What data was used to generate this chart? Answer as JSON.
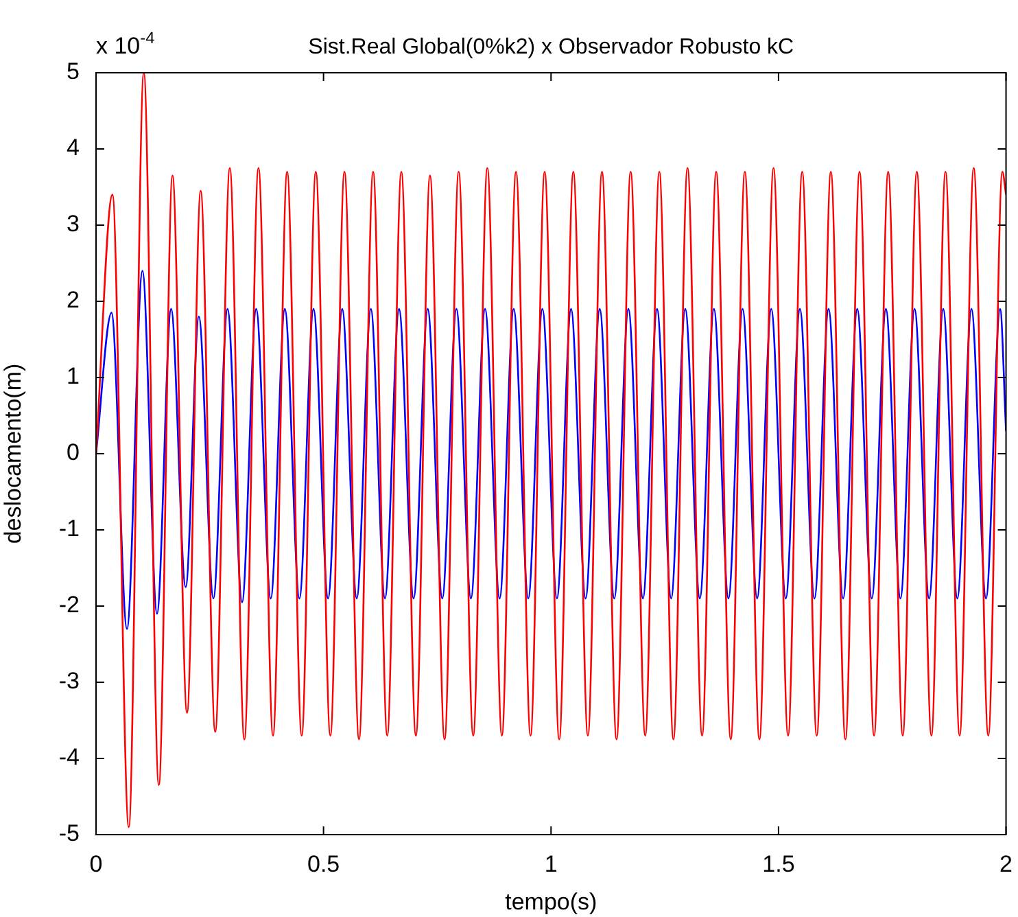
{
  "chart_data": {
    "type": "line",
    "title": "Sist.Real Global(0%k2) x Observador Robusto kC",
    "xlabel": "tempo(s)",
    "ylabel": "deslocamento(m)",
    "annotations": [
      "x 10$^{-4}$"
    ],
    "xlim": [
      0,
      2
    ],
    "xticks": [
      0,
      0.5,
      1,
      1.5,
      2
    ],
    "ylim": [
      -5,
      5
    ],
    "yticks": [
      -5,
      -4,
      -3,
      -2,
      -1,
      0,
      1,
      2,
      3,
      4,
      5
    ],
    "marker": "none",
    "line_style": "solid",
    "legend": false,
    "series": [
      {
        "color": "#ff0000",
        "x": [
          0,
          0.036,
          0.072,
          0.105,
          0.138,
          0.168,
          0.2,
          0.23,
          0.262,
          0.294,
          0.326,
          0.357,
          0.389,
          0.42,
          0.452,
          0.483,
          0.515,
          0.546,
          0.578,
          0.609,
          0.64,
          0.671,
          0.703,
          0.734,
          0.766,
          0.797,
          0.829,
          0.86,
          0.892,
          0.923,
          0.955,
          0.986,
          1.018,
          1.049,
          1.081,
          1.112,
          1.144,
          1.175,
          1.207,
          1.238,
          1.269,
          1.3,
          1.332,
          1.363,
          1.395,
          1.426,
          1.458,
          1.489,
          1.521,
          1.552,
          1.584,
          1.615,
          1.647,
          1.678,
          1.71,
          1.741,
          1.773,
          1.804,
          1.836,
          1.867,
          1.898,
          1.929,
          1.961,
          1.992,
          2.0
        ],
        "values": [
          0,
          3.4,
          -4.9,
          5.0,
          -4.35,
          3.65,
          -3.4,
          3.45,
          -3.65,
          3.75,
          -3.75,
          3.75,
          -3.7,
          3.7,
          -3.7,
          3.7,
          -3.7,
          3.7,
          -3.75,
          3.7,
          -3.7,
          3.7,
          -3.7,
          3.65,
          -3.75,
          3.7,
          -3.7,
          3.75,
          -3.7,
          3.7,
          -3.7,
          3.7,
          -3.75,
          3.7,
          -3.7,
          3.7,
          -3.75,
          3.7,
          -3.7,
          3.7,
          -3.75,
          3.75,
          -3.7,
          3.7,
          -3.75,
          3.7,
          -3.75,
          3.75,
          -3.7,
          3.7,
          -3.7,
          3.7,
          -3.75,
          3.7,
          -3.7,
          3.7,
          -3.7,
          3.7,
          -3.7,
          3.7,
          -3.7,
          3.75,
          -3.7,
          3.7,
          3.4
        ]
      },
      {
        "color": "#0000ff",
        "x": [
          0,
          0.034,
          0.068,
          0.102,
          0.134,
          0.165,
          0.197,
          0.226,
          0.258,
          0.289,
          0.321,
          0.352,
          0.384,
          0.415,
          0.447,
          0.478,
          0.51,
          0.541,
          0.573,
          0.604,
          0.635,
          0.666,
          0.698,
          0.729,
          0.761,
          0.792,
          0.824,
          0.855,
          0.887,
          0.918,
          0.95,
          0.981,
          1.013,
          1.044,
          1.076,
          1.107,
          1.139,
          1.17,
          1.202,
          1.233,
          1.264,
          1.295,
          1.327,
          1.358,
          1.39,
          1.421,
          1.453,
          1.484,
          1.516,
          1.547,
          1.579,
          1.61,
          1.642,
          1.673,
          1.705,
          1.736,
          1.768,
          1.799,
          1.831,
          1.862,
          1.893,
          1.924,
          1.956,
          1.987,
          2.0
        ],
        "values": [
          0,
          1.85,
          -2.3,
          2.4,
          -2.1,
          1.9,
          -1.75,
          1.8,
          -1.9,
          1.9,
          -1.95,
          1.9,
          -1.9,
          1.9,
          -1.9,
          1.9,
          -1.9,
          1.9,
          -1.9,
          1.9,
          -1.9,
          1.9,
          -1.9,
          1.9,
          -1.9,
          1.9,
          -1.9,
          1.9,
          -1.9,
          1.9,
          -1.9,
          1.9,
          -1.9,
          1.9,
          -1.9,
          1.9,
          -1.9,
          1.9,
          -1.9,
          1.9,
          -1.9,
          1.9,
          -1.9,
          1.9,
          -1.9,
          1.9,
          -1.9,
          1.9,
          -1.9,
          1.9,
          -1.9,
          1.9,
          -1.9,
          1.9,
          -1.9,
          1.9,
          -1.9,
          1.9,
          -1.9,
          1.9,
          -1.9,
          1.9,
          -1.9,
          1.9,
          0.3
        ]
      }
    ]
  }
}
